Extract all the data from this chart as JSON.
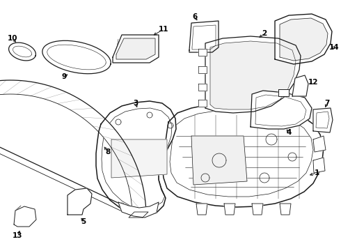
{
  "bg_color": "#ffffff",
  "line_color": "#1a1a1a",
  "label_color": "#000000",
  "lw_main": 0.9,
  "lw_inner": 0.5,
  "label_fontsize": 7.5,
  "figsize": [
    4.9,
    3.6
  ],
  "dpi": 100
}
